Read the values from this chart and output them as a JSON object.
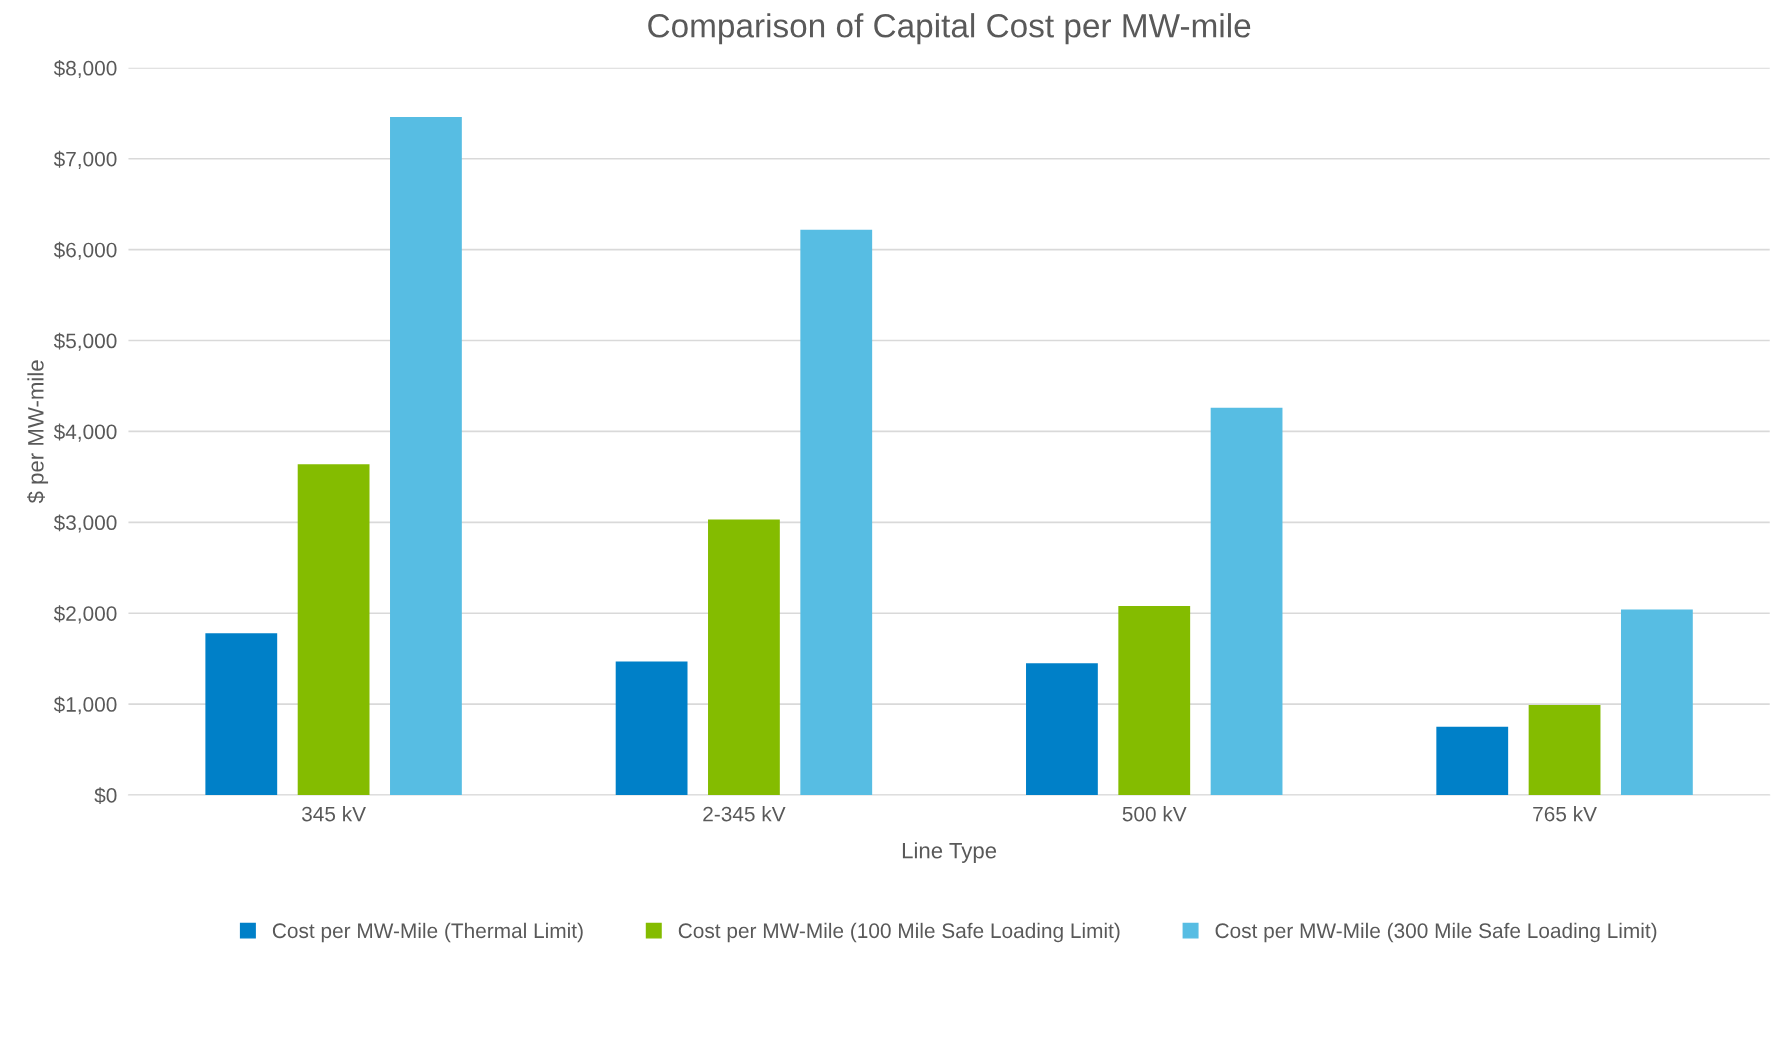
{
  "chart_data": {
    "type": "bar",
    "title": "Comparison of Capital Cost per MW-mile",
    "xlabel": "Line Type",
    "ylabel": "$ per MW-mile",
    "categories": [
      "345 kV",
      "2-345 kV",
      "500 kV",
      "765 kV"
    ],
    "series": [
      {
        "name": "Cost per MW-Mile (Thermal Limit)",
        "color": "#0080c8",
        "values": [
          1780,
          1470,
          1450,
          750
        ]
      },
      {
        "name": "Cost per MW-Mile (100 Mile Safe Loading Limit)",
        "color": "#84bc00",
        "values": [
          3640,
          3030,
          2080,
          990
        ]
      },
      {
        "name": "Cost per MW-Mile (300 Mile Safe Loading Limit)",
        "color": "#57bde3",
        "values": [
          7460,
          6220,
          4260,
          2040
        ]
      }
    ],
    "ylim": [
      0,
      8000
    ],
    "yticks": [
      {
        "value": 0,
        "label": "$0"
      },
      {
        "value": 1000,
        "label": "$1,000"
      },
      {
        "value": 2000,
        "label": "$2,000"
      },
      {
        "value": 3000,
        "label": "$3,000"
      },
      {
        "value": 4000,
        "label": "$4,000"
      },
      {
        "value": 5000,
        "label": "$5,000"
      },
      {
        "value": 6000,
        "label": "$6,000"
      },
      {
        "value": 7000,
        "label": "$7,000"
      },
      {
        "value": 8000,
        "label": "$8,000"
      }
    ],
    "grid": "y",
    "legend": "bottom"
  }
}
